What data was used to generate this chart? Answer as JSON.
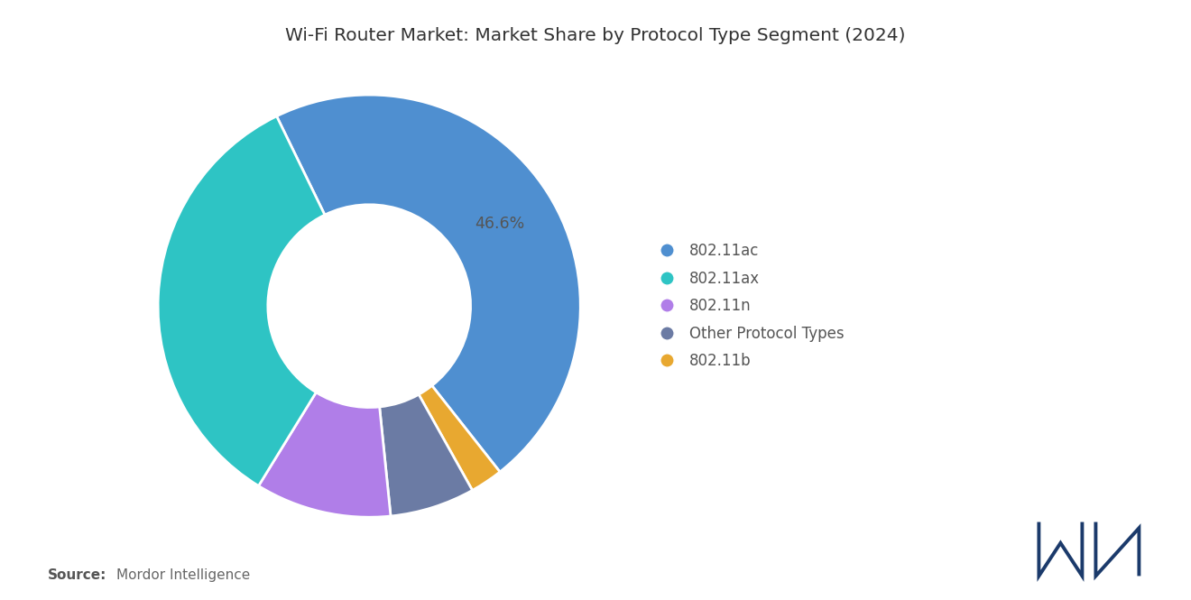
{
  "title": "Wi-Fi Router Market: Market Share by Protocol Type Segment (2024)",
  "segments": [
    "802.11ac",
    "802.11b",
    "Other Protocol Types",
    "802.11n",
    "802.11ax"
  ],
  "values": [
    46.6,
    2.5,
    6.5,
    10.4,
    34.0
  ],
  "colors": [
    "#4F8FD0",
    "#E8A830",
    "#6B7BA4",
    "#B07EE8",
    "#2EC4C4"
  ],
  "legend_segments": [
    "802.11ac",
    "802.11ax",
    "802.11n",
    "Other Protocol Types",
    "802.11b"
  ],
  "legend_colors": [
    "#4F8FD0",
    "#2EC4C4",
    "#B07EE8",
    "#6B7BA4",
    "#E8A830"
  ],
  "annotation": "46.6%",
  "startangle": 116,
  "source_bold": "Source:",
  "source_normal": "Mordor Intelligence",
  "background_color": "#ffffff",
  "title_fontsize": 14.5,
  "legend_fontsize": 12,
  "source_fontsize": 11,
  "logo_color": "#1B3A6B"
}
